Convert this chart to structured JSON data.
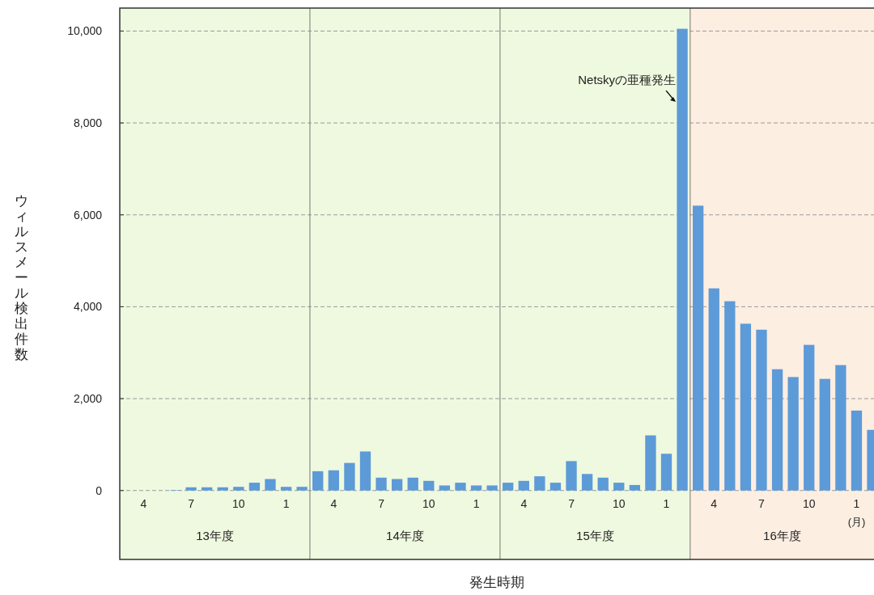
{
  "chart_data": {
    "type": "bar",
    "xlabel": "発生時期",
    "ylabel": "ウィルスメール検出件数",
    "categories": [
      "4",
      null,
      null,
      "7",
      null,
      null,
      "10",
      null,
      null,
      "1",
      null,
      null,
      "4",
      null,
      null,
      "7",
      null,
      null,
      "10",
      null,
      null,
      "1",
      null,
      null,
      "4",
      null,
      null,
      "7",
      null,
      null,
      "10",
      null,
      null,
      "1",
      null,
      null,
      "4",
      null,
      null,
      "7",
      null,
      null,
      "10",
      null,
      null,
      "1",
      null
    ],
    "values": [
      0,
      0,
      10,
      70,
      70,
      70,
      80,
      170,
      250,
      80,
      80,
      420,
      440,
      600,
      850,
      280,
      250,
      280,
      210,
      110,
      170,
      110,
      110,
      170,
      210,
      310,
      170,
      640,
      360,
      280,
      170,
      120,
      1200,
      800,
      10050,
      6200,
      4400,
      4120,
      3630,
      3500,
      2640,
      2470,
      3170,
      2430,
      2730,
      1740,
      1320
    ],
    "color": "#5d9ad8",
    "ylim": [
      -1500,
      10500
    ],
    "yticks": [
      {
        "value": 0,
        "label": "0"
      },
      {
        "value": 2000,
        "label": "2,000"
      },
      {
        "value": 4000,
        "label": "4,000"
      },
      {
        "value": 6000,
        "label": "6,000"
      },
      {
        "value": 8000,
        "label": "8,000"
      },
      {
        "value": 10000,
        "label": "10,000"
      }
    ],
    "grid": "y",
    "annotations": [
      "Netskyの亜種発生",
      "(月)",
      "13年度",
      "14年度",
      "15年度",
      "16年度"
    ]
  }
}
